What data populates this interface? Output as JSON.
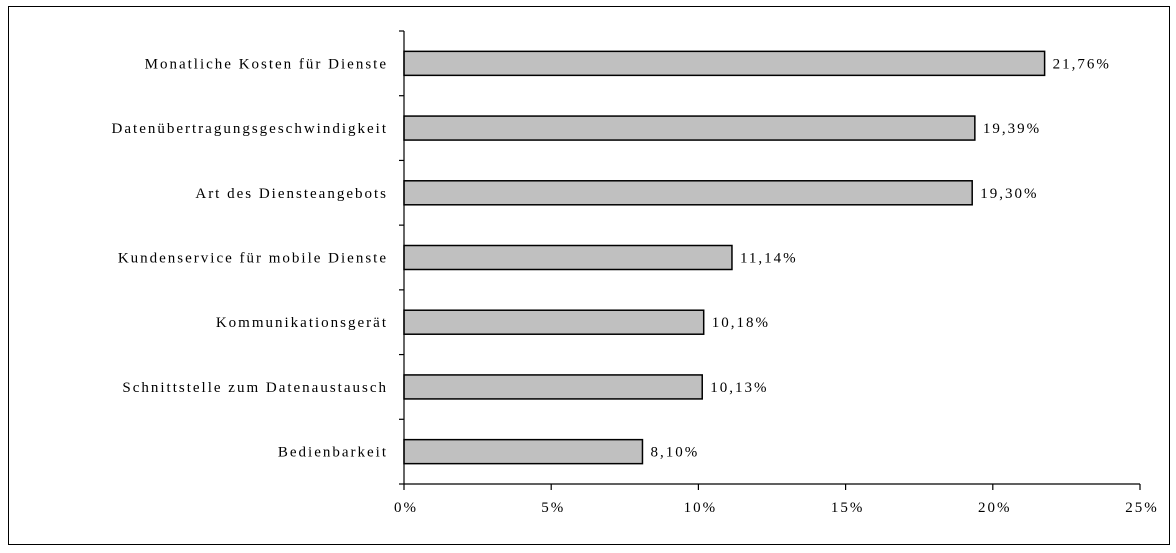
{
  "chart_data": {
    "type": "bar",
    "orientation": "horizontal",
    "categories": [
      "Monatliche Kosten für Dienste",
      "Datenübertragungsgeschwindigkeit",
      "Art des Diensteangebots",
      "Kundenservice für mobile Dienste",
      "Kommunikationsgerät",
      "Schnittstelle zum Datenaustausch",
      "Bedienbarkeit"
    ],
    "values": [
      21.76,
      19.39,
      19.3,
      11.14,
      10.18,
      10.13,
      8.1
    ],
    "value_labels": [
      "21,76%",
      "19,39%",
      "19,30%",
      "11,14%",
      "10,18%",
      "10,13%",
      "8,10%"
    ],
    "xlim": [
      0,
      25
    ],
    "x_ticks": [
      0,
      5,
      10,
      15,
      20,
      25
    ],
    "x_tick_labels": [
      "0%",
      "5%",
      "10%",
      "15%",
      "20%",
      "25%"
    ],
    "title": "",
    "xlabel": "",
    "ylabel": "",
    "grid": false,
    "bar_color": "#c0c0c0",
    "bar_edge_color": "#000000"
  }
}
